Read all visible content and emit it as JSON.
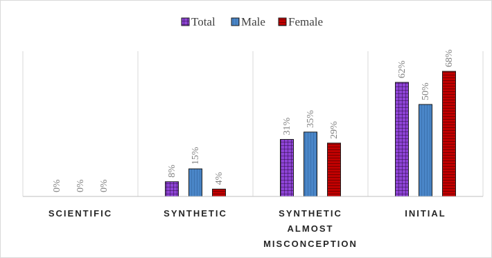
{
  "chart_data": {
    "type": "bar",
    "categories": [
      [
        "SCIENTIFIC"
      ],
      [
        "SYNTHETIC"
      ],
      [
        "SYNTHETIC",
        "ALMOST",
        "MISCONCEPTION"
      ],
      [
        "INITIAL"
      ]
    ],
    "series": [
      {
        "name": "Total",
        "values": [
          0,
          8,
          31,
          62
        ],
        "labels": [
          "0%",
          "8%",
          "31%",
          "62%"
        ],
        "color": "#8e44d6",
        "pattern": "grid"
      },
      {
        "name": "Male",
        "values": [
          0,
          15,
          35,
          50
        ],
        "labels": [
          "0%",
          "15%",
          "35%",
          "50%"
        ],
        "color": "#4a86c8",
        "pattern": "vertical"
      },
      {
        "name": "Female",
        "values": [
          0,
          4,
          29,
          68
        ],
        "labels": [
          "0%",
          "4%",
          "29%",
          "68%"
        ],
        "color": "#c00000",
        "pattern": "horizontal"
      }
    ],
    "ylim": [
      0,
      80
    ],
    "legend_position": "top-center",
    "grid": false,
    "category_separators": true
  }
}
